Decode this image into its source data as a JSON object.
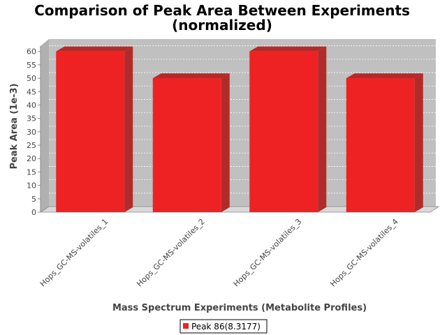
{
  "chart_data": {
    "type": "bar",
    "title": "Comparison of Peak Area Between Experiments",
    "subtitle": "(normalized)",
    "xlabel": "Mass Spectrum Experiments (Metabolite Profiles)",
    "ylabel": "Peak Area (1e-3)",
    "categories": [
      "Hops_GC-MS-volatiles_1",
      "Hops_GC-MS-volatiles_2",
      "Hops_GC-MS-volatiles_3",
      "Hops_GC-MS-volatiles_4"
    ],
    "series": [
      {
        "name": "Peak 86(8.3177)",
        "values": [
          60,
          50,
          60,
          50
        ],
        "color": "#ee2222"
      }
    ],
    "ylim": [
      0,
      62
    ],
    "yticks": [
      0,
      5,
      10,
      15,
      20,
      25,
      30,
      35,
      40,
      45,
      50,
      55,
      60
    ],
    "grid": true,
    "legend_position": "bottom",
    "colors": {
      "plot_background": "#c0c0c0",
      "bar": "#ee2222",
      "bar_dark": "#b22b2b",
      "floor": "#d9d9d9"
    }
  }
}
